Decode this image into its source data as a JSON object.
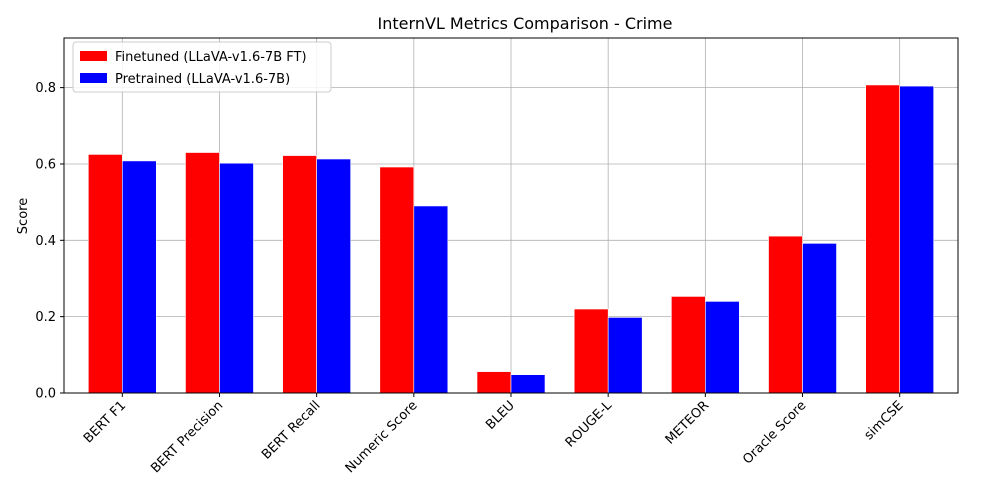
{
  "chart_data": {
    "type": "bar",
    "title": "InternVL Metrics Comparison - Crime",
    "xlabel": "",
    "ylabel": "Score",
    "ylim": [
      0,
      0.93
    ],
    "yticks": [
      "0.0",
      "0.2",
      "0.4",
      "0.6",
      "0.8"
    ],
    "grid": true,
    "legend_position": "top-left",
    "categories": [
      "BERT F1",
      "BERT Precision",
      "BERT Recall",
      "Numeric Score",
      "BLEU",
      "ROUGE-L",
      "METEOR",
      "Oracle Score",
      "simCSE"
    ],
    "series": [
      {
        "name": "Finetuned (LLaVA-v1.6-7B FT)",
        "color": "#ff0000",
        "values": [
          0.625,
          0.63,
          0.622,
          0.592,
          0.056,
          0.22,
          0.253,
          0.411,
          0.807
        ]
      },
      {
        "name": "Pretrained (LLaVA-v1.6-7B)",
        "color": "#0000ff",
        "values": [
          0.608,
          0.602,
          0.613,
          0.49,
          0.048,
          0.198,
          0.24,
          0.392,
          0.804
        ]
      }
    ]
  }
}
